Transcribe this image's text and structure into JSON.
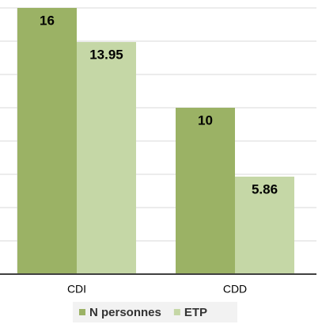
{
  "chart_data": {
    "type": "bar",
    "categories": [
      "CDI",
      "CDD"
    ],
    "series": [
      {
        "name": "N personnes",
        "color": "#9bb265",
        "values": [
          16,
          10
        ]
      },
      {
        "name": "ETP",
        "color": "#c5d7a6",
        "values": [
          13.95,
          5.86
        ]
      }
    ],
    "ylim": [
      0,
      16
    ],
    "yticks": [
      0,
      2,
      4,
      6,
      8,
      10,
      12,
      14,
      16
    ],
    "grid": true,
    "legend": "bottom"
  }
}
